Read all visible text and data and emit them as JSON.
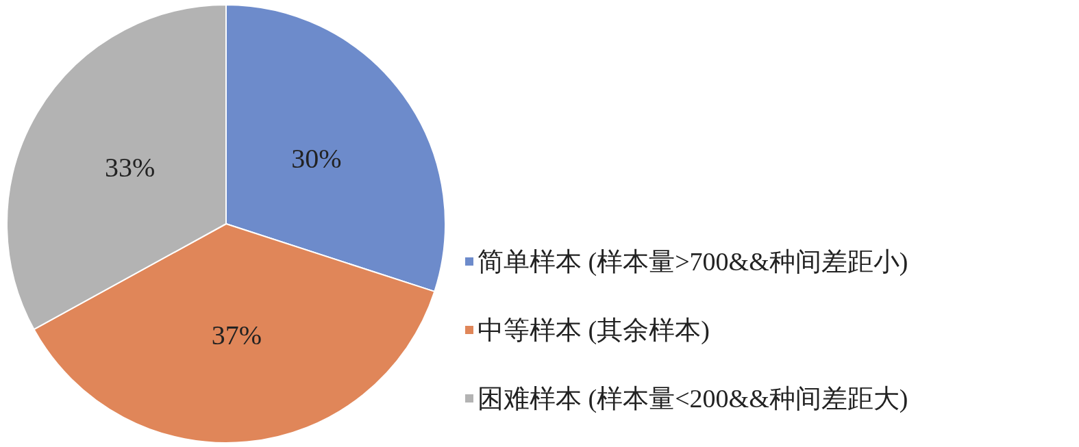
{
  "chart_data": {
    "type": "pie",
    "categories": [
      "简单样本 (样本量>700&&种间差距小)",
      "中等样本 (其余样本)",
      "困难样本 (样本量<200&&种间差距大)"
    ],
    "values": [
      30,
      37,
      33
    ],
    "colors": [
      "#6d8bcb",
      "#e08659",
      "#b3b3b3"
    ],
    "value_labels": [
      "30%",
      "37%",
      "33%"
    ],
    "legend": "right"
  }
}
